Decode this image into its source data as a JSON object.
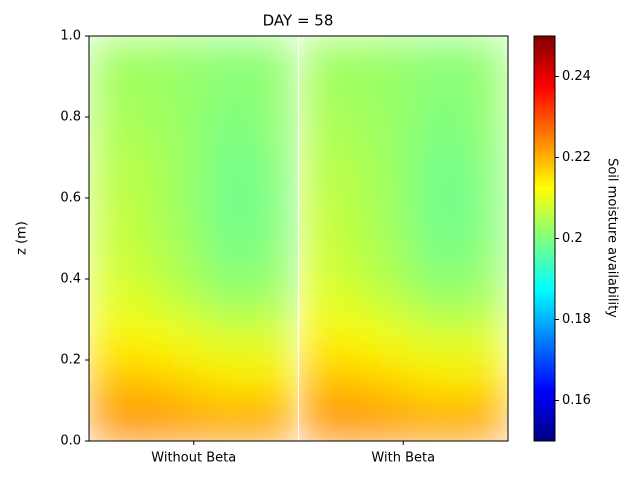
{
  "chart_data": {
    "type": "heatmap",
    "title": "DAY = 58",
    "ylabel": "z (m)",
    "categories": [
      "Without Beta",
      "With Beta"
    ],
    "y": [
      0.05,
      0.15,
      0.25,
      0.35,
      0.45,
      0.55,
      0.65,
      0.75,
      0.85,
      0.95
    ],
    "values": [
      [
        [
          0.224,
          0.224,
          0.223,
          0.222,
          0.223
        ],
        [
          0.219,
          0.218,
          0.216,
          0.214,
          0.215
        ],
        [
          0.214,
          0.213,
          0.211,
          0.209,
          0.21
        ],
        [
          0.21,
          0.208,
          0.205,
          0.202,
          0.204
        ],
        [
          0.208,
          0.206,
          0.203,
          0.199,
          0.202
        ],
        [
          0.207,
          0.205,
          0.202,
          0.198,
          0.201
        ],
        [
          0.206,
          0.205,
          0.202,
          0.198,
          0.201
        ],
        [
          0.205,
          0.204,
          0.202,
          0.199,
          0.202
        ],
        [
          0.204,
          0.203,
          0.202,
          0.2,
          0.202
        ],
        [
          0.203,
          0.203,
          0.202,
          0.201,
          0.202
        ]
      ],
      [
        [
          0.224,
          0.224,
          0.223,
          0.222,
          0.223
        ],
        [
          0.219,
          0.218,
          0.216,
          0.214,
          0.215
        ],
        [
          0.214,
          0.213,
          0.211,
          0.209,
          0.21
        ],
        [
          0.21,
          0.208,
          0.205,
          0.202,
          0.204
        ],
        [
          0.208,
          0.206,
          0.203,
          0.199,
          0.202
        ],
        [
          0.207,
          0.205,
          0.202,
          0.198,
          0.201
        ],
        [
          0.206,
          0.205,
          0.202,
          0.198,
          0.201
        ],
        [
          0.205,
          0.204,
          0.202,
          0.199,
          0.202
        ],
        [
          0.204,
          0.203,
          0.202,
          0.2,
          0.202
        ],
        [
          0.203,
          0.203,
          0.202,
          0.201,
          0.202
        ]
      ]
    ],
    "ylim": [
      0,
      1
    ],
    "yticks": [
      {
        "value": 0,
        "label": "0.0"
      },
      0.2,
      0.4,
      0.6,
      0.8,
      {
        "value": 1,
        "label": "1.0"
      }
    ],
    "colormap": "jet",
    "clim": [
      0.15,
      0.25
    ],
    "cticks": [
      0.16,
      0.18,
      0.2,
      0.22,
      0.24
    ],
    "colorbar_label": "Soil moisture availability"
  }
}
